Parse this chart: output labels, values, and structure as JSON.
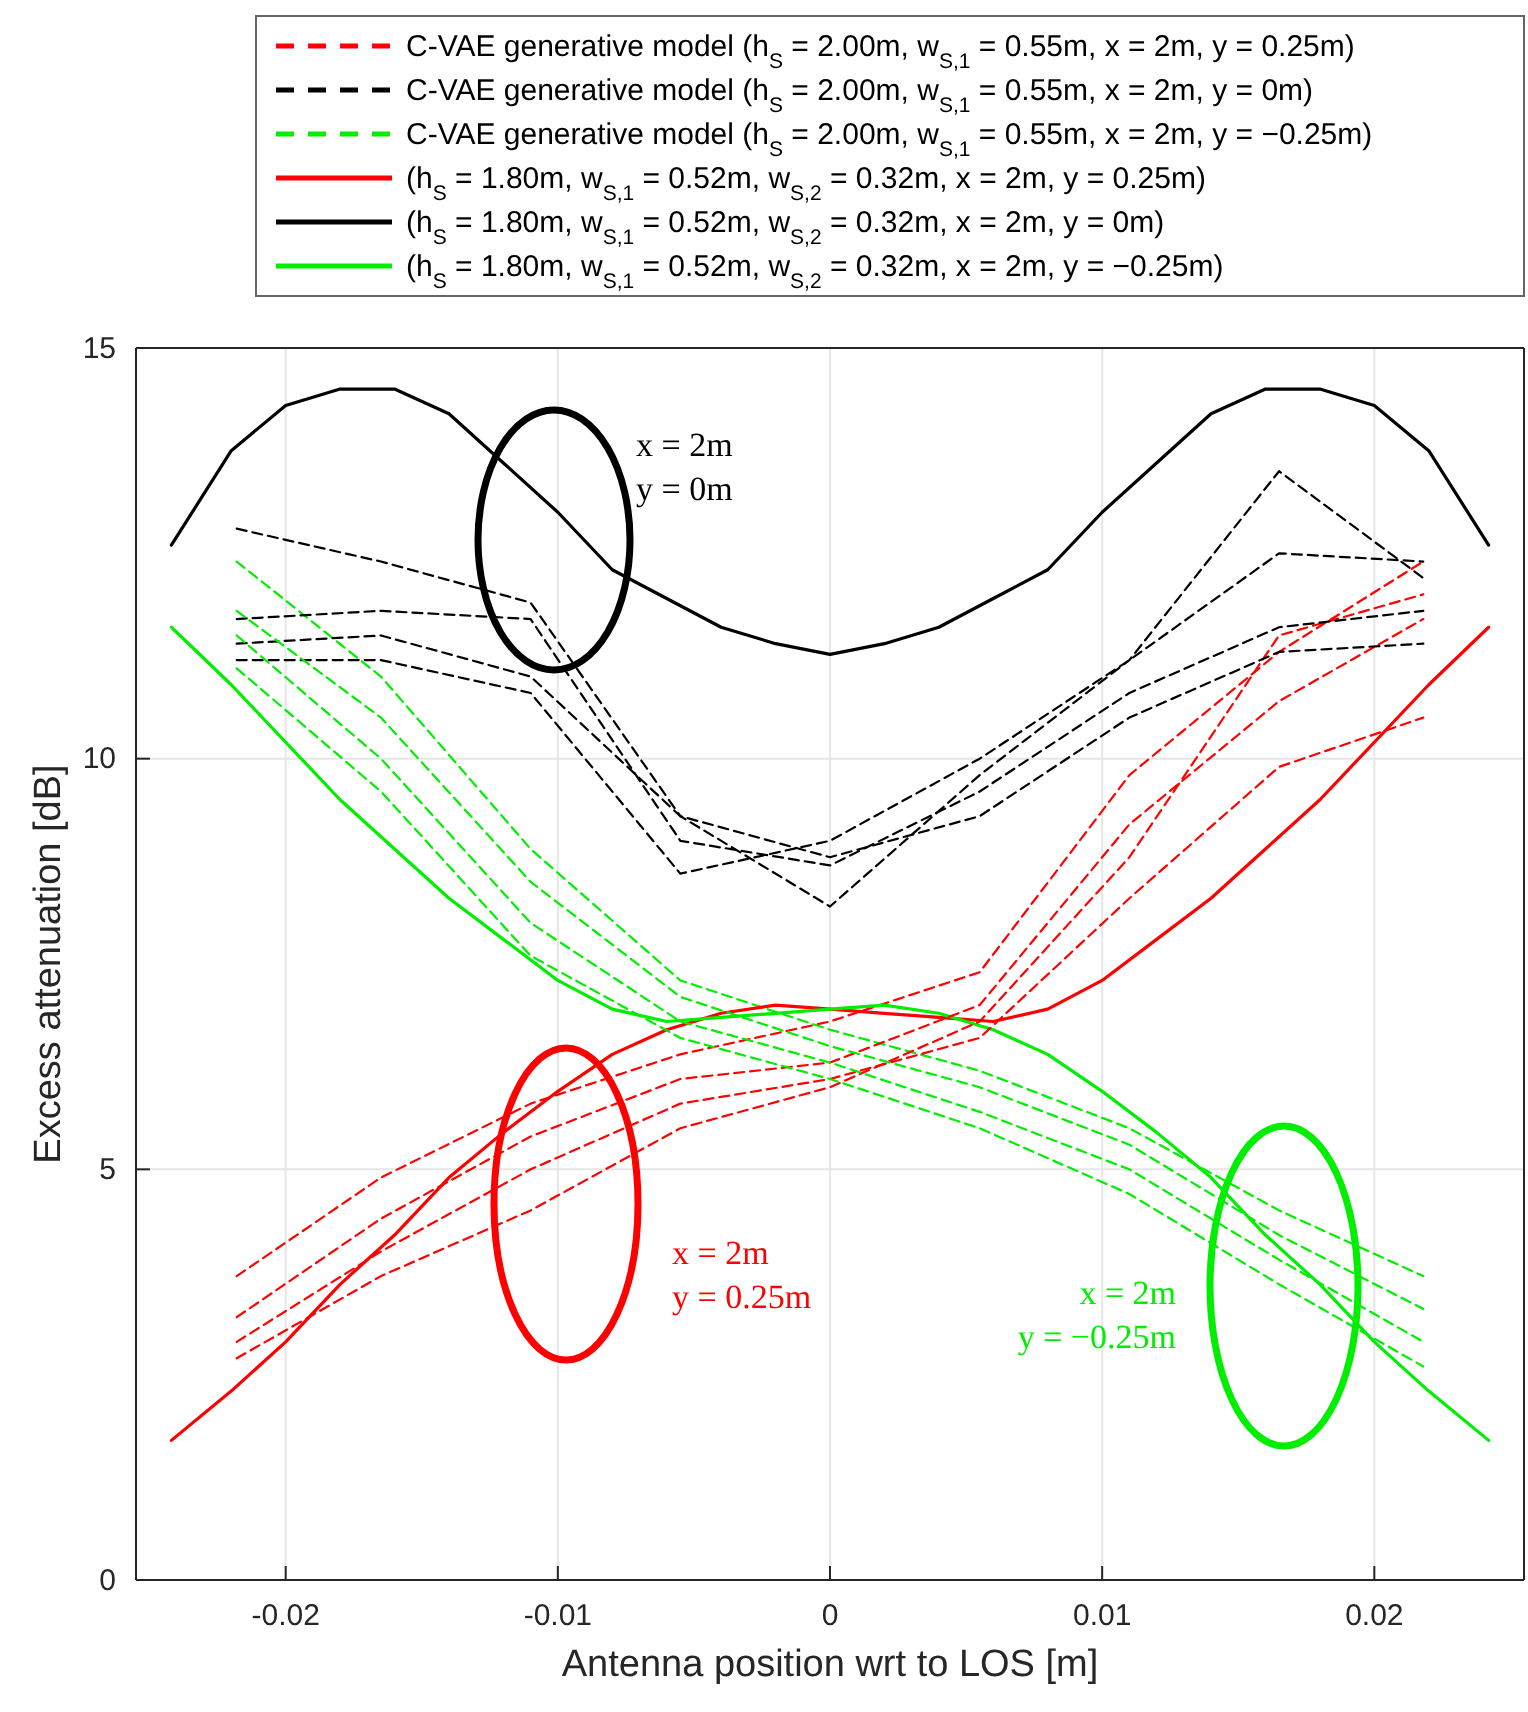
{
  "chart_data": {
    "type": "line",
    "xlabel": "Antenna position wrt to LOS [m]",
    "ylabel": "Excess attenuation [dB]",
    "x": [
      -0.0218,
      -0.0165,
      -0.011,
      -0.0055,
      0,
      0.0055,
      0.011,
      0.0165,
      0.0218
    ],
    "xlim": [
      -0.0255,
      0.0255
    ],
    "xticks": [
      -0.02,
      -0.01,
      0,
      0.01,
      0.02
    ],
    "ylim": [
      0,
      15
    ],
    "yticks": [
      0,
      5,
      10,
      15
    ],
    "grid": true,
    "legend": "top",
    "marker": "none",
    "series": [
      {
        "name": "C-VAE generative model (h$_{S}$ = 2.00m, w$_{S,1}$ = 0.55m, x = 2m, y = 0.25m)",
        "color": "#ff0000",
        "line_style": "dashed",
        "values": [
          3.7,
          4.9,
          5.8,
          6.4,
          6.8,
          7.4,
          9.8,
          11.3,
          12.4
        ]
      },
      {
        "name": "C-VAE generative model (h$_{S}$ = 2.00m, w$_{S,1}$ = 0.55m, x = 2m, y = 0m)",
        "color": "#000000",
        "line_style": "dashed",
        "values": [
          12.8,
          12.4,
          11.9,
          9.3,
          8.2,
          9.8,
          11.2,
          13.5,
          12.2
        ]
      },
      {
        "name": "C-VAE generative model (h$_{S}$ = 2.00m, w$_{S,1}$ = 0.55m, x = 2m, y = −0.25m)",
        "color": "#00ee00",
        "line_style": "dashed",
        "values": [
          12.4,
          11.0,
          8.9,
          7.3,
          6.7,
          6.2,
          5.5,
          4.5,
          3.7
        ]
      },
      {
        "name": "(h$_{S}$ = 1.80m, w$_{S,1}$ = 0.52m, w$_{S,2}$ = 0.32m, x = 2m, y = 0.25m)",
        "color": "#ff0000",
        "line_style": "solid",
        "x": [
          -0.0242,
          -0.022,
          -0.02,
          -0.018,
          -0.016,
          -0.014,
          -0.012,
          -0.01,
          -0.008,
          -0.006,
          -0.004,
          -0.002,
          0,
          0.002,
          0.004,
          0.006,
          0.008,
          0.01,
          0.012,
          0.014,
          0.016,
          0.018,
          0.02,
          0.022,
          0.0242
        ],
        "values": [
          1.7,
          2.3,
          2.9,
          3.6,
          4.2,
          4.9,
          5.45,
          5.95,
          6.4,
          6.7,
          6.9,
          7.0,
          6.95,
          6.9,
          6.85,
          6.8,
          6.95,
          7.3,
          7.8,
          8.3,
          8.9,
          9.5,
          10.2,
          10.9,
          11.6
        ]
      },
      {
        "name": "(h$_{S}$ = 1.80m, w$_{S,1}$ = 0.52m, w$_{S,2}$ = 0.32m,  x = 2m, y = 0m)",
        "color": "#000000",
        "line_style": "solid",
        "x": [
          -0.0242,
          -0.022,
          -0.02,
          -0.018,
          -0.016,
          -0.014,
          -0.012,
          -0.01,
          -0.008,
          -0.006,
          -0.004,
          -0.002,
          0,
          0.002,
          0.004,
          0.006,
          0.008,
          0.01,
          0.012,
          0.014,
          0.016,
          0.018,
          0.02,
          0.022,
          0.0242
        ],
        "values": [
          12.6,
          13.75,
          14.3,
          14.5,
          14.5,
          14.2,
          13.6,
          13.0,
          12.3,
          11.95,
          11.6,
          11.4,
          11.27,
          11.4,
          11.6,
          11.95,
          12.3,
          13.0,
          13.6,
          14.2,
          14.5,
          14.5,
          14.3,
          13.75,
          12.6
        ]
      },
      {
        "name": "(h$_{S}$ = 1.80m, w$_{S,1}$ = 0.52m, w$_{S,2}$ = 0.32m, x = 2m, y = −0.25m)",
        "color": "#00ee00",
        "line_style": "solid",
        "x": [
          -0.0242,
          -0.022,
          -0.02,
          -0.018,
          -0.016,
          -0.014,
          -0.012,
          -0.01,
          -0.008,
          -0.006,
          -0.004,
          -0.002,
          0,
          0.002,
          0.004,
          0.006,
          0.008,
          0.01,
          0.012,
          0.014,
          0.016,
          0.018,
          0.02,
          0.022,
          0.0242
        ],
        "values": [
          11.6,
          10.9,
          10.2,
          9.5,
          8.9,
          8.3,
          7.8,
          7.3,
          6.95,
          6.8,
          6.85,
          6.9,
          6.95,
          7.0,
          6.9,
          6.7,
          6.4,
          5.95,
          5.45,
          4.9,
          4.2,
          3.6,
          2.9,
          2.3,
          1.7
        ]
      },
      {
        "color": "#ff0000",
        "line_style": "dashed",
        "values": [
          3.2,
          4.4,
          5.4,
          6.1,
          6.3,
          7.0,
          9.2,
          10.7,
          11.7
        ]
      },
      {
        "color": "#ff0000",
        "line_style": "dashed",
        "values": [
          2.9,
          4.0,
          5.0,
          5.8,
          6.1,
          6.6,
          8.3,
          9.9,
          10.5
        ]
      },
      {
        "color": "#ff0000",
        "line_style": "dashed",
        "values": [
          2.7,
          3.7,
          4.5,
          5.5,
          6.0,
          6.8,
          8.8,
          11.5,
          12.0
        ]
      },
      {
        "color": "#000000",
        "line_style": "dashed",
        "values": [
          11.7,
          11.8,
          11.7,
          9.0,
          8.7,
          9.6,
          10.8,
          11.6,
          11.8
        ]
      },
      {
        "color": "#000000",
        "line_style": "dashed",
        "values": [
          11.4,
          11.5,
          11.0,
          9.3,
          8.8,
          9.3,
          10.5,
          11.3,
          11.4
        ]
      },
      {
        "color": "#000000",
        "line_style": "dashed",
        "values": [
          11.2,
          11.2,
          10.8,
          8.6,
          9.0,
          10.0,
          11.2,
          12.5,
          12.4
        ]
      },
      {
        "color": "#00ee00",
        "line_style": "dashed",
        "values": [
          11.8,
          10.5,
          8.5,
          7.1,
          6.5,
          6.0,
          5.3,
          4.2,
          3.3
        ]
      },
      {
        "color": "#00ee00",
        "line_style": "dashed",
        "values": [
          11.5,
          10.0,
          8.0,
          6.8,
          6.3,
          5.7,
          5.0,
          3.9,
          2.9
        ]
      },
      {
        "color": "#00ee00",
        "line_style": "dashed",
        "values": [
          11.1,
          9.6,
          7.6,
          6.6,
          6.1,
          5.5,
          4.7,
          3.6,
          2.6
        ]
      }
    ],
    "annotations": [
      "x = 2m\ny = 0.25m",
      "x = 2m\ny = 0m",
      "x = 2m\ny = −0.25m"
    ]
  }
}
